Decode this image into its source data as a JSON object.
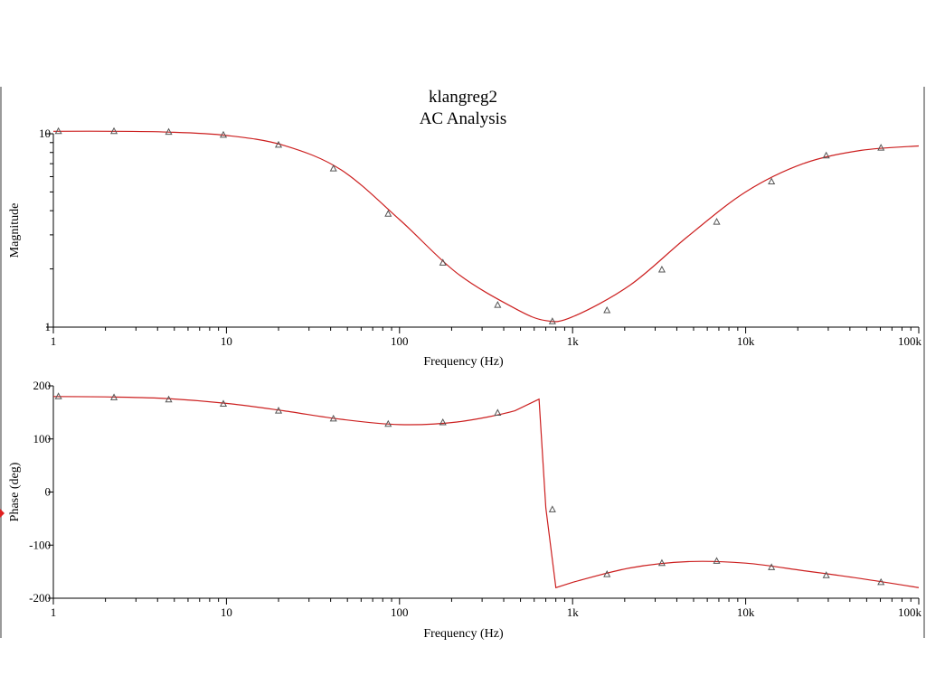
{
  "window": {
    "title": "klangreg2",
    "subtitle": "AC Analysis"
  },
  "colors": {
    "trace": "#cc1f1f",
    "axis": "#000000",
    "marker": "#555555"
  },
  "chart_data": [
    {
      "type": "line",
      "name": "magnitude-plot",
      "xlabel": "Frequency (Hz)",
      "ylabel": "Magnitude",
      "xscale": "log",
      "yscale": "log",
      "xlim": [
        1,
        100000
      ],
      "ylim": [
        1,
        10
      ],
      "xticks": [
        {
          "v": 1,
          "label": "1"
        },
        {
          "v": 10,
          "label": "10"
        },
        {
          "v": 100,
          "label": "100"
        },
        {
          "v": 1000,
          "label": "1k"
        },
        {
          "v": 10000,
          "label": "10k"
        },
        {
          "v": 100000,
          "label": "100k"
        }
      ],
      "yticks": [
        {
          "v": 1,
          "label": "1"
        },
        {
          "v": 10,
          "label": "10"
        }
      ],
      "grid": false,
      "series": [
        {
          "x": [
            1,
            2.15,
            4.6,
            10,
            21.5,
            46,
            100,
            215,
            464,
            700,
            1000,
            2150,
            4640,
            10000,
            21500,
            46400,
            100000
          ],
          "y": [
            10.3,
            10.3,
            10.2,
            9.8,
            8.7,
            6.5,
            3.6,
            1.9,
            1.25,
            1.08,
            1.13,
            1.65,
            2.95,
            5.0,
            7.0,
            8.2,
            8.65
          ]
        }
      ],
      "markers": {
        "x": [
          1.07,
          2.24,
          4.64,
          9.6,
          20,
          41.5,
          86,
          178,
          369,
          764,
          1580,
          3280,
          6800,
          14100,
          29200,
          60500
        ],
        "y": [
          10.3,
          10.3,
          10.2,
          9.85,
          8.75,
          6.6,
          3.85,
          2.15,
          1.3,
          1.07,
          1.22,
          1.98,
          3.5,
          5.65,
          7.7,
          8.45
        ]
      }
    },
    {
      "type": "line",
      "name": "phase-plot",
      "xlabel": "Frequency (Hz)",
      "ylabel": "Phase (deg)",
      "xscale": "log",
      "yscale": "linear",
      "xlim": [
        1,
        100000
      ],
      "ylim": [
        -200,
        200
      ],
      "xticks": [
        {
          "v": 1,
          "label": "1"
        },
        {
          "v": 10,
          "label": "10"
        },
        {
          "v": 100,
          "label": "100"
        },
        {
          "v": 1000,
          "label": "1k"
        },
        {
          "v": 10000,
          "label": "10k"
        },
        {
          "v": 100000,
          "label": "100k"
        }
      ],
      "yticks": [
        {
          "v": 200,
          "label": "200"
        },
        {
          "v": 100,
          "label": "100"
        },
        {
          "v": 0,
          "label": "0"
        },
        {
          "v": -100,
          "label": "-100"
        },
        {
          "v": -200,
          "label": "-200"
        }
      ],
      "grid": false,
      "series": [
        {
          "x": [
            1,
            2.15,
            4.6,
            10,
            21.5,
            46,
            100,
            215,
            464,
            640,
            700,
            800,
            1000,
            2150,
            4640,
            10000,
            21500,
            46400,
            100000
          ],
          "y": [
            180,
            179,
            176,
            167,
            153,
            137,
            127,
            132,
            153,
            175,
            -30,
            -180,
            -170,
            -143,
            -131,
            -134,
            -148,
            -163,
            -180
          ]
        }
      ],
      "markers": {
        "x": [
          1.07,
          2.24,
          4.64,
          9.6,
          20,
          41.5,
          86,
          178,
          369,
          764,
          1580,
          3280,
          6800,
          14100,
          29200,
          60500
        ],
        "y": [
          180,
          178,
          174,
          166,
          153,
          138,
          128,
          131,
          149,
          -33,
          -155,
          -134,
          -130,
          -142,
          -157,
          -170
        ]
      }
    }
  ]
}
